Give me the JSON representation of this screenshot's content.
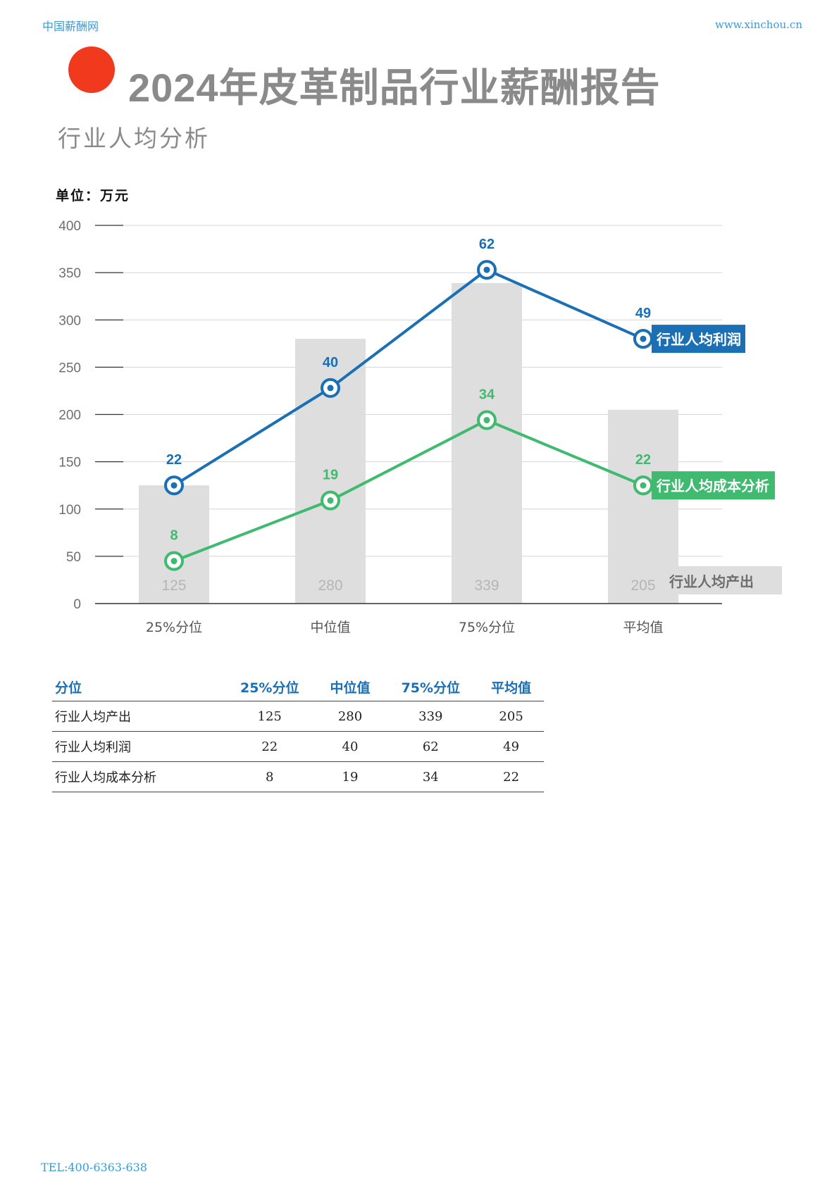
{
  "header": {
    "brand_left": "中国薪酬网",
    "brand_right": "www.xinchou.cn",
    "title": "2024年皮革制品行业薪酬报告",
    "section": "行业人均分析",
    "unit": "单位：万元"
  },
  "colors": {
    "accent_red": "#f0391d",
    "header_blue": "#3a9bd6",
    "profit_blue": "#1a6fb5",
    "cost_green": "#3fba6f",
    "bar_gray": "#dedede",
    "axis_text": "#6e6e6e"
  },
  "chart_data": {
    "type": "bar",
    "categories": [
      "25%分位",
      "中位值",
      "75%分位",
      "平均值"
    ],
    "ylim": [
      0,
      400
    ],
    "yticks": [
      0,
      50,
      100,
      150,
      200,
      250,
      300,
      350,
      400
    ],
    "grid": true,
    "series": [
      {
        "name": "行业人均产出",
        "type": "bar",
        "values": [
          125,
          280,
          339,
          205
        ],
        "color": "#dedede"
      },
      {
        "name": "行业人均利润",
        "type": "line",
        "plot_values": [
          125,
          228,
          353,
          280
        ],
        "labels": [
          "22",
          "40",
          "62",
          "49"
        ],
        "color": "#1a6fb5"
      },
      {
        "name": "行业人均成本分析",
        "type": "line",
        "plot_values": [
          45,
          109,
          194,
          125
        ],
        "labels": [
          "8",
          "19",
          "34",
          "22"
        ],
        "color": "#3fba6f"
      }
    ]
  },
  "table": {
    "headers": [
      "分位",
      "25%分位",
      "中位值",
      "75%分位",
      "平均值"
    ],
    "rows": [
      {
        "label": "行业人均产出",
        "values": [
          "125",
          "280",
          "339",
          "205"
        ]
      },
      {
        "label": "行业人均利润",
        "values": [
          "22",
          "40",
          "62",
          "49"
        ]
      },
      {
        "label": "行业人均成本分析",
        "values": [
          "8",
          "19",
          "34",
          "22"
        ]
      }
    ]
  },
  "footer": {
    "tel": "TEL:400-6363-638"
  }
}
